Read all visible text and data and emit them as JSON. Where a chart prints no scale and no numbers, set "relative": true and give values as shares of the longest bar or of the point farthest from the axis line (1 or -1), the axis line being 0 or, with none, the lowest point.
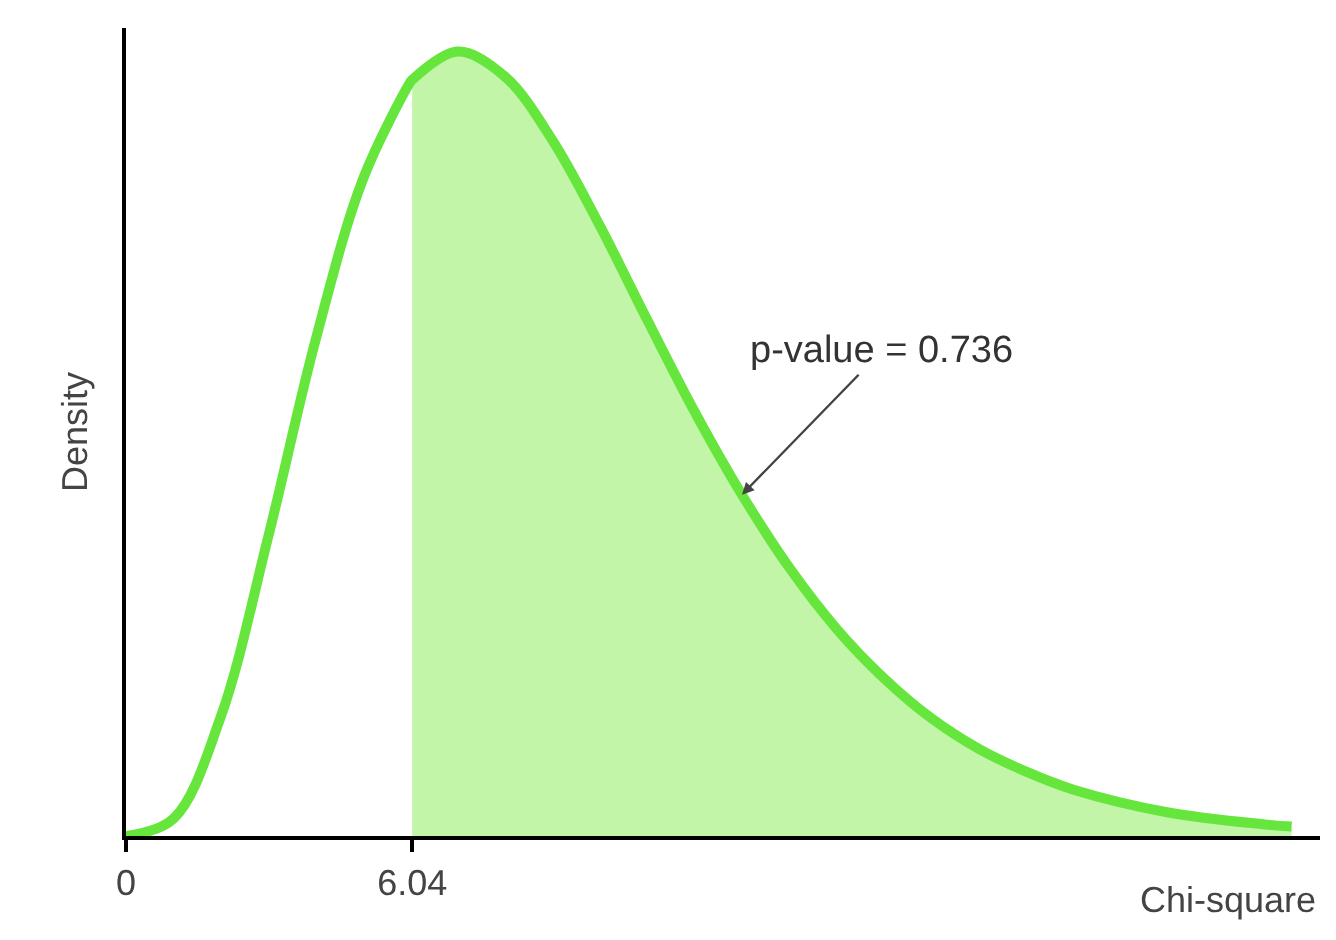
{
  "chart_data": {
    "type": "line",
    "relative": true,
    "xlabel": "Chi-square",
    "ylabel": "Density",
    "xlim": [
      0,
      25.2
    ],
    "xticks": [
      0,
      6.04
    ],
    "grid": false,
    "marker": "none",
    "line_style": "solid",
    "series": [
      {
        "type": "area",
        "color": "#c2f5a8",
        "x": [
          6.04,
          7,
          8,
          9,
          10,
          11,
          12,
          13,
          14,
          15,
          16,
          17,
          18,
          19,
          20,
          22,
          24,
          24.6
        ],
        "values": [
          0.964,
          1,
          0.968,
          0.887,
          0.778,
          0.658,
          0.541,
          0.435,
          0.342,
          0.264,
          0.201,
          0.15,
          0.111,
          0.082,
          0.059,
          0.03,
          0.015,
          0.012
        ]
      },
      {
        "color": "#66e63c",
        "x": [
          0,
          1,
          2,
          3,
          4,
          5,
          6,
          6.04,
          7,
          8,
          9,
          10,
          11,
          12,
          13,
          14,
          15,
          16,
          17,
          18,
          19,
          20,
          22,
          24,
          24.6
        ],
        "values": [
          0,
          0.022,
          0.152,
          0.381,
          0.632,
          0.837,
          0.961,
          0.964,
          1,
          0.968,
          0.887,
          0.778,
          0.658,
          0.541,
          0.435,
          0.342,
          0.264,
          0.201,
          0.15,
          0.111,
          0.082,
          0.059,
          0.03,
          0.015,
          0.012
        ]
      }
    ],
    "annotations": [
      {
        "text": "p-value = 0.736",
        "x": 13,
        "y": 0.435
      }
    ]
  }
}
